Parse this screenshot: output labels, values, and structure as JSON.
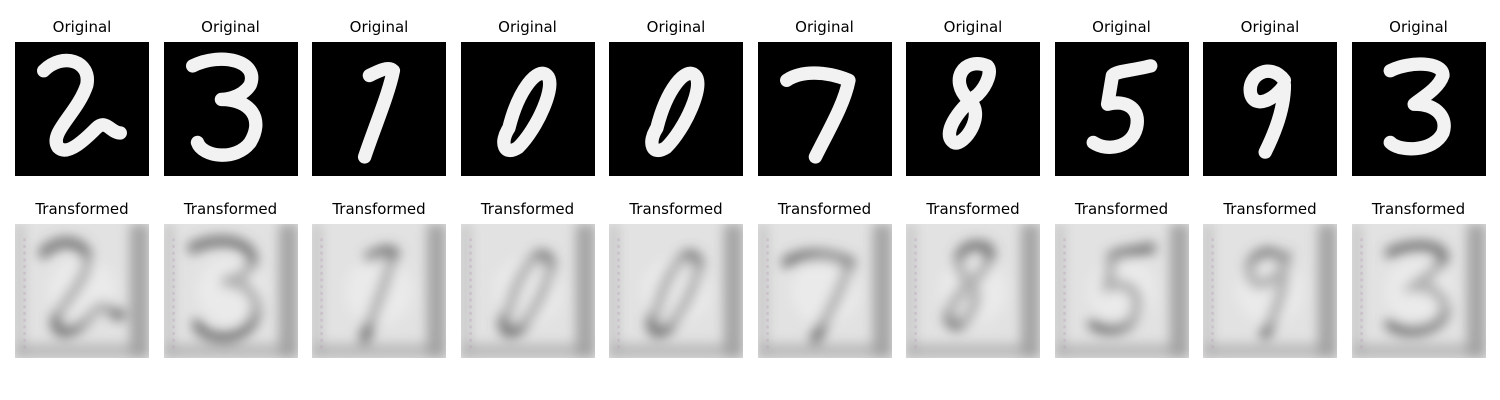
{
  "panels": [
    {
      "digit": "2",
      "original_title": "Original",
      "transformed_title": "Transformed"
    },
    {
      "digit": "3",
      "original_title": "Original",
      "transformed_title": "Transformed"
    },
    {
      "digit": "1",
      "original_title": "Original",
      "transformed_title": "Transformed"
    },
    {
      "digit": "0",
      "original_title": "Original",
      "transformed_title": "Transformed"
    },
    {
      "digit": "0",
      "original_title": "Original",
      "transformed_title": "Transformed"
    },
    {
      "digit": "7",
      "original_title": "Original",
      "transformed_title": "Transformed"
    },
    {
      "digit": "8",
      "original_title": "Original",
      "transformed_title": "Transformed"
    },
    {
      "digit": "5",
      "original_title": "Original",
      "transformed_title": "Transformed"
    },
    {
      "digit": "9",
      "original_title": "Original",
      "transformed_title": "Transformed"
    },
    {
      "digit": "3",
      "original_title": "Original",
      "transformed_title": "Transformed"
    }
  ],
  "colors": {
    "original_background": "#000000",
    "original_stroke": "#f2f2f2",
    "transformed_background": "#dcdcdc",
    "transformed_dark": "#5a5a5a"
  }
}
